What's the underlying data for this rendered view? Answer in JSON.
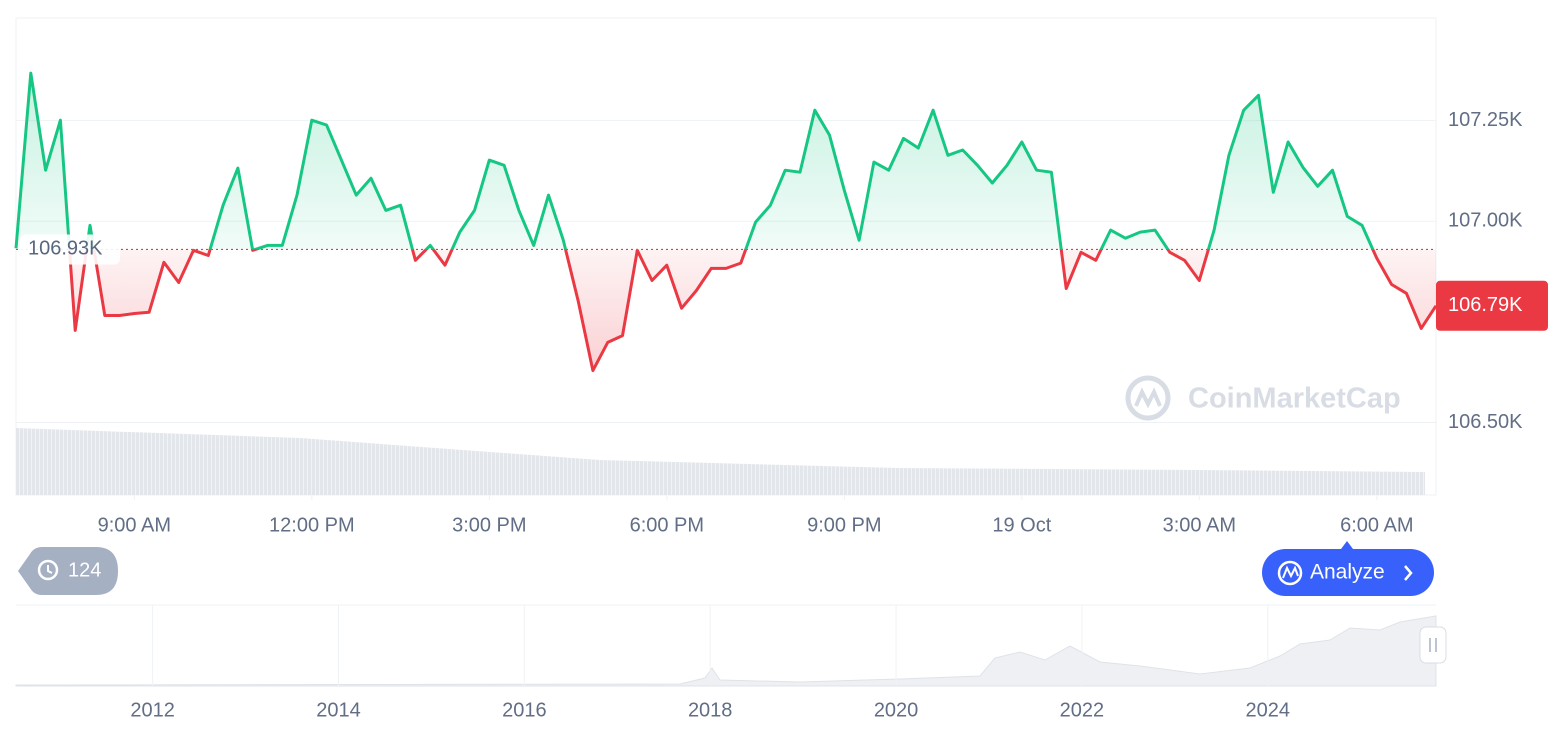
{
  "chart_data": {
    "type": "line",
    "x": [
      7,
      7.25,
      7.5,
      7.75,
      8,
      8.25,
      8.5,
      8.75,
      9,
      9.25,
      9.5,
      9.75,
      10,
      10.25,
      10.5,
      10.75,
      11,
      11.25,
      11.5,
      11.75,
      12,
      12.25,
      12.5,
      12.75,
      13,
      13.25,
      13.5,
      13.75,
      14,
      14.25,
      14.5,
      14.75,
      15,
      15.25,
      15.5,
      15.75,
      16,
      16.25,
      16.5,
      16.75,
      17,
      17.25,
      17.5,
      17.75,
      18,
      18.25,
      18.5,
      18.75,
      19,
      19.25,
      19.5,
      19.75,
      20,
      20.25,
      20.5,
      20.75,
      21,
      21.25,
      21.5,
      21.75,
      22,
      22.25,
      22.5,
      22.75,
      23,
      23.25,
      23.5,
      23.75,
      24,
      24.25,
      24.5,
      24.75,
      25,
      25.25,
      25.5,
      25.75,
      26,
      26.25,
      26.5,
      26.75,
      27,
      27.25,
      27.5,
      27.75,
      28,
      28.25,
      28.5,
      28.75,
      29,
      29.25,
      29.5,
      29.75,
      30,
      30.25,
      30.5,
      30.75,
      31
    ],
    "values": [
      106.933,
      107.368,
      107.127,
      107.251,
      106.729,
      106.99,
      106.766,
      106.766,
      106.771,
      106.774,
      106.898,
      106.848,
      106.928,
      106.915,
      107.04,
      107.132,
      106.928,
      106.94,
      106.94,
      107.065,
      107.251,
      107.239,
      107.152,
      107.065,
      107.107,
      107.027,
      107.04,
      106.903,
      106.94,
      106.891,
      106.973,
      107.027,
      107.152,
      107.139,
      107.027,
      106.94,
      107.065,
      106.953,
      106.803,
      106.629,
      106.699,
      106.716,
      106.928,
      106.853,
      106.891,
      106.784,
      106.828,
      106.883,
      106.883,
      106.896,
      106.998,
      107.04,
      107.127,
      107.122,
      107.276,
      107.214,
      107.077,
      106.953,
      107.147,
      107.127,
      107.206,
      107.182,
      107.276,
      107.164,
      107.177,
      107.139,
      107.095,
      107.139,
      107.197,
      107.127,
      107.122,
      106.833,
      106.923,
      106.903,
      106.978,
      106.958,
      106.973,
      106.978,
      106.923,
      106.903,
      106.853,
      106.978,
      107.164,
      107.276,
      107.313,
      107.072,
      107.197,
      107.134,
      107.087,
      107.127,
      107.012,
      106.99,
      106.908,
      106.843,
      106.821,
      106.734,
      106.79
    ],
    "up_color": "#16c784",
    "down_color": "#ea3943",
    "baseline": {
      "value": 106.93,
      "label": "106.93K"
    },
    "last_price": {
      "value": 106.79,
      "label": "106.79K"
    },
    "xlim": [
      7,
      31
    ],
    "xticks": [
      {
        "value": 9,
        "label": "9:00 AM"
      },
      {
        "value": 12,
        "label": "12:00 PM"
      },
      {
        "value": 15,
        "label": "3:00 PM"
      },
      {
        "value": 18,
        "label": "6:00 PM"
      },
      {
        "value": 21,
        "label": "9:00 PM"
      },
      {
        "value": 24,
        "label": "19 Oct"
      },
      {
        "value": 27,
        "label": "3:00 AM"
      },
      {
        "value": 30,
        "label": "6:00 AM"
      }
    ],
    "ylim": [
      106.32,
      107.505
    ],
    "yticks": [
      {
        "value": 106.5,
        "label": "106.50K"
      },
      {
        "value": 107,
        "label": "107.00K"
      },
      {
        "value": 107.25,
        "label": "107.25K"
      }
    ],
    "grid": true
  },
  "navigator": {
    "xlim": [
      2010.53,
      2025.81
    ],
    "xticks": [
      2012,
      2014,
      2016,
      2018,
      2020,
      2022,
      2024
    ]
  },
  "watermark": "CoinMarketCap",
  "history_badge": 124,
  "analyze_button": "Analyze"
}
